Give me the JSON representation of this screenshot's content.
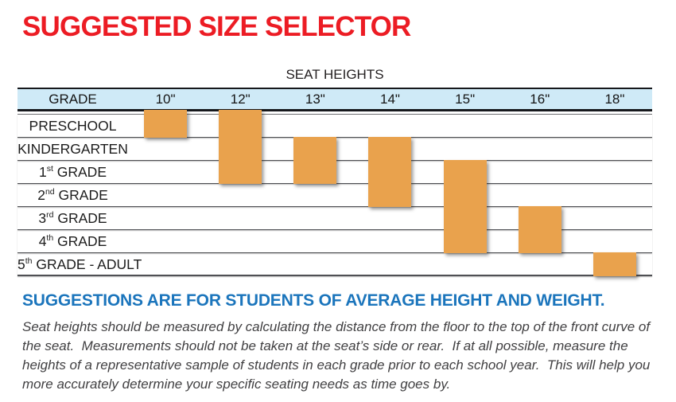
{
  "title": "SUGGESTED SIZE SELECTOR",
  "subheading": "SUGGESTIONS ARE FOR STUDENTS OF AVERAGE HEIGHT AND WEIGHT.",
  "description": "Seat heights should be measured by calculating the distance from the floor to the top of the front curve of the seat.  Measurements should not be taken at the seat’s side or rear.  If at all possible, measure the heights of a representative sample of students in each grade prior to each school year.  This will help you more accurately determine your specific seating needs as time goes by.",
  "chart_data": {
    "type": "table",
    "caption": "SEAT HEIGHTS",
    "grade_column_header": "GRADE",
    "seat_heights": [
      "10\"",
      "12\"",
      "13\"",
      "14\"",
      "15\"",
      "16\"",
      "18\""
    ],
    "grades": [
      {
        "label": "PRESCHOOL",
        "pre": "PRESCHOOL",
        "sup": "",
        "post": ""
      },
      {
        "label": "KINDERGARTEN",
        "pre": "KINDERGARTEN",
        "sup": "",
        "post": ""
      },
      {
        "label": "1st GRADE",
        "pre": "1",
        "sup": "st",
        "post": " GRADE"
      },
      {
        "label": "2nd GRADE",
        "pre": "2",
        "sup": "nd",
        "post": " GRADE"
      },
      {
        "label": "3rd GRADE",
        "pre": "3",
        "sup": "rd",
        "post": " GRADE"
      },
      {
        "label": "4th GRADE",
        "pre": "4",
        "sup": "th",
        "post": " GRADE"
      },
      {
        "label": "5th GRADE - ADULT",
        "pre": "5",
        "sup": "th",
        "post": " GRADE - ADULT"
      }
    ],
    "bars": [
      {
        "seat_height": "10\"",
        "grade_start": 1,
        "grade_end": 1,
        "grade_range": "PRESCHOOL"
      },
      {
        "seat_height": "12\"",
        "grade_start": 1,
        "grade_end": 3,
        "grade_range": "PRESCHOOL - 1st GRADE"
      },
      {
        "seat_height": "13\"",
        "grade_start": 2,
        "grade_end": 3,
        "grade_range": "KINDERGARTEN - 1st GRADE"
      },
      {
        "seat_height": "14\"",
        "grade_start": 2,
        "grade_end": 4,
        "grade_range": "KINDERGARTEN - 2nd GRADE"
      },
      {
        "seat_height": "15\"",
        "grade_start": 3,
        "grade_end": 6,
        "grade_range": "1st GRADE - 4th GRADE"
      },
      {
        "seat_height": "16\"",
        "grade_start": 5,
        "grade_end": 6,
        "grade_range": "3rd GRADE - 4th GRADE"
      },
      {
        "seat_height": "18\"",
        "grade_start": 7,
        "grade_end": 7,
        "grade_range": "5th GRADE - ADULT"
      }
    ]
  },
  "colors": {
    "title_red": "#ec1c24",
    "header_bg": "#cfeaf7",
    "bar_orange": "#e9a24d",
    "subheading_blue": "#1b75bc",
    "text_dark": "#231f20",
    "body_text": "#414042",
    "line_dark": "#4f5054",
    "border_black": "#16181c"
  }
}
